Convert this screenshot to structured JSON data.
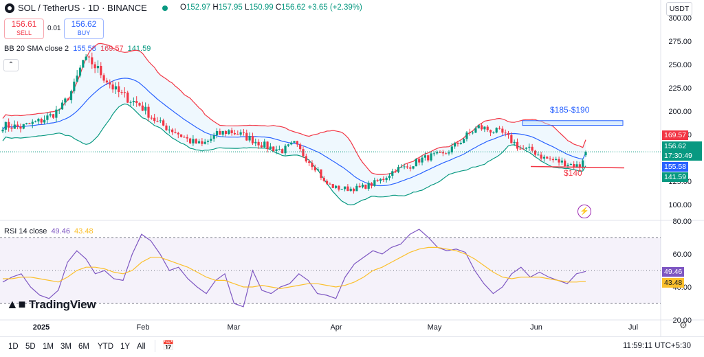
{
  "header": {
    "symbol": "SOL / TetherUS · 1D · BINANCE",
    "open_label": "O",
    "open": "152.97",
    "high_label": "H",
    "high": "157.95",
    "low_label": "L",
    "low": "150.99",
    "close_label": "C",
    "close": "156.62",
    "change": "+3.65 (+2.39%)",
    "currency": "USDT"
  },
  "trade": {
    "sell_price": "156.61",
    "sell_label": "SELL",
    "spread": "0.01",
    "buy_price": "156.62",
    "buy_label": "BUY"
  },
  "bb_legend": {
    "name": "BB 20 SMA close 2",
    "basis": "155.58",
    "upper": "169.57",
    "lower": "141.59"
  },
  "rsi_legend": {
    "name": "RSI 14 close",
    "rsi": "49.46",
    "ma": "43.48"
  },
  "annotations": {
    "target": "$185-$190",
    "support": "$140"
  },
  "price_labels": {
    "upper": "169.57",
    "last": "156.62",
    "countdown": "17:30:49",
    "basis": "155.58",
    "lower": "141.59"
  },
  "rsi_labels": {
    "rsi": "49.46",
    "ma": "43.48"
  },
  "watermark": "TradingView",
  "timeframes": [
    "1D",
    "5D",
    "1M",
    "3M",
    "6M",
    "YTD",
    "1Y",
    "All"
  ],
  "clock": "11:59:11 UTC+5:30",
  "icons": [
    "chart-logo-icon",
    "market-open-dot-icon",
    "collapse-chevron-icon",
    "lightning-icon",
    "settings-gear-icon",
    "calendar-range-icon"
  ],
  "colors": {
    "up": "#089981",
    "down": "#f23645",
    "basis": "#2962ff",
    "bb_upper": "#f23645",
    "bb_lower": "#089981",
    "rsi": "#7e57c2",
    "rsi_ma": "#fbc02d"
  },
  "chart_data": [
    {
      "type": "candlestick",
      "title": "SOL / TetherUS · 1D · BINANCE",
      "y_axis_ticks": [
        100,
        125,
        150,
        175,
        200,
        225,
        250,
        275,
        300
      ],
      "y_tick_labels": [
        "100.00",
        "125.00",
        "150.00",
        "175.00",
        "200.00",
        "225.00",
        "250.00",
        "275.00",
        "300.00"
      ],
      "ylim": [
        84,
        303
      ],
      "x_axis_ticks": [
        "2025",
        "Feb",
        "Mar",
        "Apr",
        "May",
        "Jun",
        "Jul"
      ],
      "close_path": [
        [
          0,
          185
        ],
        [
          6,
          183
        ],
        [
          12,
          189
        ],
        [
          16,
          195
        ],
        [
          20,
          205
        ],
        [
          24,
          227
        ],
        [
          27,
          254
        ],
        [
          30,
          252
        ],
        [
          34,
          237
        ],
        [
          38,
          222
        ],
        [
          42,
          214
        ],
        [
          46,
          207
        ],
        [
          52,
          188
        ],
        [
          58,
          178
        ],
        [
          63,
          168
        ],
        [
          67,
          164
        ],
        [
          72,
          175
        ],
        [
          76,
          179
        ],
        [
          80,
          175
        ],
        [
          85,
          168
        ],
        [
          89,
          162
        ],
        [
          94,
          158
        ],
        [
          98,
          165
        ],
        [
          102,
          150
        ],
        [
          106,
          137
        ],
        [
          108,
          124
        ],
        [
          112,
          118
        ],
        [
          116,
          117
        ],
        [
          120,
          118
        ],
        [
          124,
          122
        ],
        [
          128,
          128
        ],
        [
          132,
          138
        ],
        [
          136,
          140
        ],
        [
          140,
          148
        ],
        [
          144,
          152
        ],
        [
          148,
          153
        ],
        [
          152,
          163
        ],
        [
          156,
          174
        ],
        [
          160,
          183
        ],
        [
          164,
          180
        ],
        [
          168,
          176
        ],
        [
          172,
          166
        ],
        [
          174,
          160
        ],
        [
          178,
          158
        ],
        [
          182,
          150
        ],
        [
          186,
          147
        ],
        [
          190,
          144
        ],
        [
          194,
          141
        ],
        [
          196,
          158
        ]
      ],
      "indicators": {
        "bb_upper_last": 169.57,
        "bb_basis_last": 155.58,
        "bb_lower_last": 141.59
      },
      "annotations": [
        "$185-$190 zone",
        "$140 support line"
      ]
    },
    {
      "type": "line",
      "title": "RSI 14 close",
      "y_axis_ticks": [
        20,
        40,
        60,
        80
      ],
      "y_tick_labels": [
        "20.00",
        "40.00",
        "60.00",
        "80.00"
      ],
      "ylim": [
        20,
        80
      ],
      "bands": [
        30,
        70
      ],
      "series": [
        {
          "name": "RSI",
          "values": [
            43,
            46,
            48,
            40,
            35,
            33,
            38,
            55,
            62,
            57,
            48,
            50,
            45,
            44,
            60,
            72,
            68,
            60,
            50,
            52,
            45,
            40,
            36,
            44,
            48,
            30,
            28,
            50,
            38,
            36,
            40,
            42,
            48,
            44,
            36,
            35,
            33,
            46,
            54,
            58,
            62,
            60,
            64,
            66,
            72,
            75,
            70,
            64,
            62,
            63,
            61,
            50,
            42,
            36,
            40,
            48,
            52,
            46,
            49,
            46,
            44,
            42,
            48,
            49.46
          ]
        },
        {
          "name": "RSI MA",
          "values": [
            45,
            45,
            46,
            46,
            45,
            44,
            43,
            46,
            50,
            52,
            52,
            51,
            49,
            48,
            50,
            55,
            58,
            58,
            56,
            54,
            52,
            49,
            46,
            44,
            44,
            42,
            40,
            40,
            41,
            40,
            39,
            40,
            41,
            42,
            42,
            41,
            40,
            41,
            43,
            46,
            50,
            52,
            55,
            58,
            61,
            63,
            64,
            64,
            63,
            62,
            60,
            57,
            53,
            49,
            46,
            45,
            46,
            46,
            46,
            45,
            44,
            43,
            43,
            43.48
          ]
        }
      ],
      "last_values": {
        "RSI": 49.46,
        "RSI MA": 43.48
      }
    }
  ]
}
